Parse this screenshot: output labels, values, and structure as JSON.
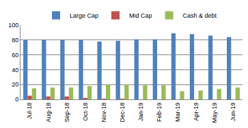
{
  "chart_data": {
    "type": "bar",
    "categories": [
      "Jul-18",
      "Aug-18",
      "Sep-18",
      "Oct-18",
      "Nov-18",
      "Dec-18",
      "Jan-19",
      "Feb-19",
      "Mar-19",
      "Apr-19",
      "May-19",
      "Jun-19"
    ],
    "series": [
      {
        "name": "Large Cap",
        "color": "#4f81bd",
        "values": [
          80,
          80,
          80,
          80,
          78,
          79,
          81,
          81,
          89,
          88,
          86,
          84
        ]
      },
      {
        "name": "Mid Cap",
        "color": "#c0504d",
        "values": [
          5,
          4,
          4,
          2,
          1,
          1,
          0,
          0,
          0,
          0,
          0,
          0
        ]
      },
      {
        "name": "Cash & debt",
        "color": "#9bbb59",
        "values": [
          15,
          16,
          16,
          18,
          20,
          20,
          19,
          19,
          11,
          12,
          14,
          16
        ]
      }
    ],
    "ylim": [
      0,
      100
    ],
    "yticks": [
      0,
      20,
      40,
      60,
      80,
      100
    ],
    "grid": true,
    "legend": "top"
  }
}
